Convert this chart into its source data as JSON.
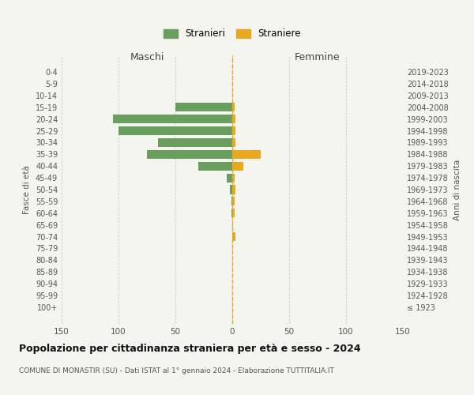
{
  "age_groups": [
    "0-4",
    "5-9",
    "10-14",
    "15-19",
    "20-24",
    "25-29",
    "30-34",
    "35-39",
    "40-44",
    "45-49",
    "50-54",
    "55-59",
    "60-64",
    "65-69",
    "70-74",
    "75-79",
    "80-84",
    "85-89",
    "90-94",
    "95-99",
    "100+"
  ],
  "birth_years": [
    "2019-2023",
    "2014-2018",
    "2009-2013",
    "2004-2008",
    "1999-2003",
    "1994-1998",
    "1989-1993",
    "1984-1988",
    "1979-1983",
    "1974-1978",
    "1969-1973",
    "1964-1968",
    "1959-1963",
    "1954-1958",
    "1949-1953",
    "1944-1948",
    "1939-1943",
    "1934-1938",
    "1929-1933",
    "1924-1928",
    "≤ 1923"
  ],
  "males": [
    0,
    0,
    0,
    50,
    105,
    100,
    65,
    75,
    30,
    5,
    2,
    1,
    1,
    0,
    0,
    0,
    0,
    0,
    0,
    0,
    0
  ],
  "females": [
    0,
    0,
    0,
    2,
    3,
    3,
    3,
    25,
    10,
    2,
    3,
    2,
    2,
    1,
    3,
    0,
    0,
    0,
    0,
    0,
    0
  ],
  "male_color": "#6a9e5f",
  "female_color": "#e8a820",
  "background_color": "#f5f5f0",
  "grid_color": "#cccccc",
  "title": "Popolazione per cittadinanza straniera per età e sesso - 2024",
  "subtitle": "COMUNE DI MONASTIR (SU) - Dati ISTAT al 1° gennaio 2024 - Elaborazione TUTTITALIA.IT",
  "xlabel_left": "Maschi",
  "xlabel_right": "Femmine",
  "ylabel_left": "Fasce di età",
  "ylabel_right": "Anni di nascita",
  "legend_male": "Stranieri",
  "legend_female": "Straniere",
  "xlim": 150,
  "bar_height": 0.75
}
